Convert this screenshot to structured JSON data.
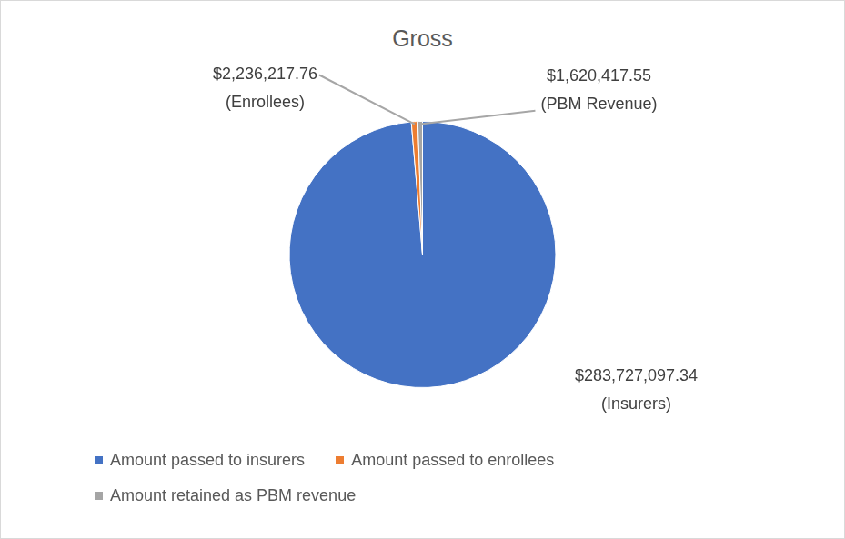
{
  "chart_data": {
    "type": "pie",
    "title": "Gross",
    "categories": [
      "Amount passed to insurers",
      "Amount passed to enrollees",
      "Amount retained as PBM revenue"
    ],
    "values": [
      283727097.34,
      2236217.76,
      1620417.55
    ],
    "value_labels": [
      [
        "$283,727,097.34",
        "(Insurers)"
      ],
      [
        "$2,236,217.76",
        "(Enrollees)"
      ],
      [
        "$1,620,417.55",
        "(PBM Revenue)"
      ]
    ],
    "colors": [
      "#4472c4",
      "#ed7d31",
      "#a5a5a5"
    ],
    "legend": "bottom",
    "data_labels": true
  }
}
